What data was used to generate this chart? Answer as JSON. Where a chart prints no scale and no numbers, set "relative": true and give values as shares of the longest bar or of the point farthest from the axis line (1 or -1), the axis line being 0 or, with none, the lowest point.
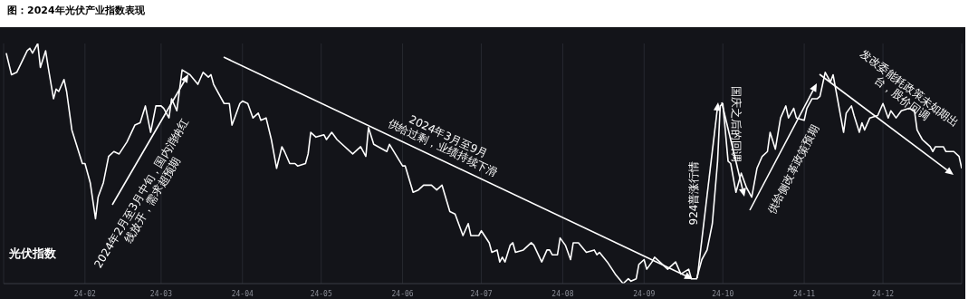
{
  "chart_data": {
    "type": "line",
    "title": "图：2024年光伏产业指数表现",
    "relative": true,
    "grid": "x",
    "xlim": [
      "2024-01-01",
      "2024-12-31"
    ],
    "xticks": [
      {
        "value": "2024-02-01",
        "label": "24-02"
      },
      {
        "value": "2024-03-01",
        "label": "24-03"
      },
      {
        "value": "2024-04-01",
        "label": "24-04"
      },
      {
        "value": "2024-05-01",
        "label": "24-05"
      },
      {
        "value": "2024-06-01",
        "label": "24-06"
      },
      {
        "value": "2024-07-01",
        "label": "24-07"
      },
      {
        "value": "2024-08-01",
        "label": "24-08"
      },
      {
        "value": "2024-09-01",
        "label": "24-09"
      },
      {
        "value": "2024-10-01",
        "label": "24-10"
      },
      {
        "value": "2024-11-01",
        "label": "24-11"
      },
      {
        "value": "2024-12-01",
        "label": "24-12"
      }
    ],
    "annotations": [
      "2024年2月至3月中旬，国内消纳红\n线放开，需求超预期",
      "2024年3月至9月\n供给过剩，业绩持续下滑",
      "924普涨行情",
      "国庆之后的回调",
      "供给侧改革政策预期",
      "发改委能耗政策未如期出\n台，股价回调",
      "光伏指数"
    ],
    "x": [
      "2024-01-02",
      "2024-01-04",
      "2024-01-06",
      "2024-01-10",
      "2024-01-11",
      "2024-01-12",
      "2024-01-14",
      "2024-01-15",
      "2024-01-17",
      "2024-01-18",
      "2024-01-20",
      "2024-01-21",
      "2024-01-22",
      "2024-01-24",
      "2024-01-25",
      "2024-01-27",
      "2024-01-31",
      "2024-02-01",
      "2024-02-03",
      "2024-02-05",
      "2024-02-06",
      "2024-02-08",
      "2024-02-10",
      "2024-02-12",
      "2024-02-14",
      "2024-02-17",
      "2024-02-20",
      "2024-02-22",
      "2024-02-24",
      "2024-02-26",
      "2024-02-28",
      "2024-03-01",
      "2024-03-02",
      "2024-03-04",
      "2024-03-05",
      "2024-03-07",
      "2024-03-09",
      "2024-03-12",
      "2024-03-15",
      "2024-03-17",
      "2024-03-19",
      "2024-03-20",
      "2024-03-21",
      "2024-03-25",
      "2024-03-27",
      "2024-03-28",
      "2024-03-29",
      "2024-03-31",
      "2024-04-01",
      "2024-04-03",
      "2024-04-05",
      "2024-04-07",
      "2024-04-08",
      "2024-04-10",
      "2024-04-12",
      "2024-04-14",
      "2024-04-16",
      "2024-04-17",
      "2024-04-19",
      "2024-04-21",
      "2024-04-22",
      "2024-04-25",
      "2024-04-26",
      "2024-04-27",
      "2024-04-29",
      "2024-05-02",
      "2024-05-03",
      "2024-05-05",
      "2024-05-07",
      "2024-05-13",
      "2024-05-16",
      "2024-05-18",
      "2024-05-19",
      "2024-05-21",
      "2024-05-26",
      "2024-05-27",
      "2024-06-01",
      "2024-06-02",
      "2024-06-05",
      "2024-06-07",
      "2024-06-09",
      "2024-06-12",
      "2024-06-14",
      "2024-06-16",
      "2024-06-19",
      "2024-06-21",
      "2024-06-24",
      "2024-06-26",
      "2024-06-27",
      "2024-06-30",
      "2024-07-01",
      "2024-07-04",
      "2024-07-05",
      "2024-07-07",
      "2024-07-08",
      "2024-07-09",
      "2024-07-10",
      "2024-07-12",
      "2024-07-13",
      "2024-07-14",
      "2024-07-17",
      "2024-07-20",
      "2024-07-21",
      "2024-07-24",
      "2024-07-26",
      "2024-07-27",
      "2024-07-28",
      "2024-07-30",
      "2024-07-31",
      "2024-08-02",
      "2024-08-04",
      "2024-08-05",
      "2024-08-07",
      "2024-08-10",
      "2024-08-13",
      "2024-08-14",
      "2024-08-15",
      "2024-08-18",
      "2024-08-21",
      "2024-08-24",
      "2024-08-26",
      "2024-08-27",
      "2024-08-29",
      "2024-08-30",
      "2024-09-01",
      "2024-09-02",
      "2024-09-04",
      "2024-09-05",
      "2024-09-07",
      "2024-09-10",
      "2024-09-13",
      "2024-09-15",
      "2024-09-18",
      "2024-09-19",
      "2024-09-21",
      "2024-09-23",
      "2024-09-25",
      "2024-09-27",
      "2024-09-29",
      "2024-09-30",
      "2024-10-01",
      "2024-10-03",
      "2024-10-04",
      "2024-10-06",
      "2024-10-08",
      "2024-10-10",
      "2024-10-12",
      "2024-10-14",
      "2024-10-16",
      "2024-10-18",
      "2024-10-19",
      "2024-10-21",
      "2024-10-23",
      "2024-10-25",
      "2024-10-26",
      "2024-10-28",
      "2024-10-29",
      "2024-11-01",
      "2024-11-02",
      "2024-11-04",
      "2024-11-06",
      "2024-11-07",
      "2024-11-08",
      "2024-11-09",
      "2024-11-11",
      "2024-11-12",
      "2024-11-14",
      "2024-11-16",
      "2024-11-17",
      "2024-11-19",
      "2024-11-20",
      "2024-11-22",
      "2024-11-23",
      "2024-11-24",
      "2024-11-26",
      "2024-11-29",
      "2024-12-01",
      "2024-12-03",
      "2024-12-04",
      "2024-12-06",
      "2024-12-08",
      "2024-12-11",
      "2024-12-13",
      "2024-12-14",
      "2024-12-16",
      "2024-12-17",
      "2024-12-19",
      "2024-12-20",
      "2024-12-21",
      "2024-12-24",
      "2024-12-25",
      "2024-12-28",
      "2024-12-30",
      "2024-12-31"
    ],
    "series": [
      {
        "color": "#ffffff",
        "values": [
          0.96,
          0.87,
          0.88,
          0.97,
          0.98,
          0.96,
          1.0,
          0.9,
          0.97,
          0.9,
          0.77,
          0.81,
          0.8,
          0.85,
          0.8,
          0.64,
          0.5,
          0.5,
          0.42,
          0.27,
          0.36,
          0.42,
          0.53,
          0.55,
          0.54,
          0.59,
          0.66,
          0.67,
          0.74,
          0.63,
          0.74,
          0.74,
          0.73,
          0.69,
          0.77,
          0.72,
          0.89,
          0.87,
          0.83,
          0.88,
          0.86,
          0.87,
          0.83,
          0.75,
          0.75,
          0.66,
          0.69,
          0.75,
          0.76,
          0.75,
          0.69,
          0.71,
          0.68,
          0.69,
          0.6,
          0.48,
          0.57,
          0.55,
          0.5,
          0.5,
          0.49,
          0.5,
          0.54,
          0.63,
          0.61,
          0.62,
          0.6,
          0.63,
          0.6,
          0.54,
          0.57,
          0.53,
          0.65,
          0.58,
          0.55,
          0.58,
          0.49,
          0.49,
          0.38,
          0.39,
          0.41,
          0.41,
          0.39,
          0.41,
          0.3,
          0.29,
          0.2,
          0.25,
          0.2,
          0.2,
          0.22,
          0.17,
          0.13,
          0.14,
          0.09,
          0.11,
          0.09,
          0.16,
          0.17,
          0.13,
          0.14,
          0.17,
          0.16,
          0.09,
          0.14,
          0.14,
          0.12,
          0.12,
          0.19,
          0.16,
          0.1,
          0.17,
          0.17,
          0.13,
          0.14,
          0.12,
          0.13,
          0.09,
          0.04,
          0.0,
          0.02,
          0.01,
          0.02,
          0.08,
          0.1,
          0.06,
          0.09,
          0.11,
          0.09,
          0.06,
          0.09,
          0.04,
          0.06,
          0.02,
          0.02,
          0.1,
          0.14,
          0.25,
          0.51,
          0.74,
          0.75,
          0.51,
          0.5,
          0.38,
          0.46,
          0.4,
          0.36,
          0.48,
          0.53,
          0.55,
          0.63,
          0.56,
          0.69,
          0.74,
          0.69,
          0.73,
          0.69,
          0.68,
          0.73,
          0.77,
          0.77,
          0.78,
          0.83,
          0.88,
          0.84,
          0.87,
          0.75,
          0.63,
          0.71,
          0.74,
          0.7,
          0.63,
          0.67,
          0.64,
          0.69,
          0.7,
          0.75,
          0.69,
          0.72,
          0.69,
          0.72,
          0.73,
          0.72,
          0.64,
          0.6,
          0.59,
          0.57,
          0.55,
          0.57,
          0.57,
          0.55,
          0.55,
          0.53,
          0.48
        ]
      }
    ]
  }
}
